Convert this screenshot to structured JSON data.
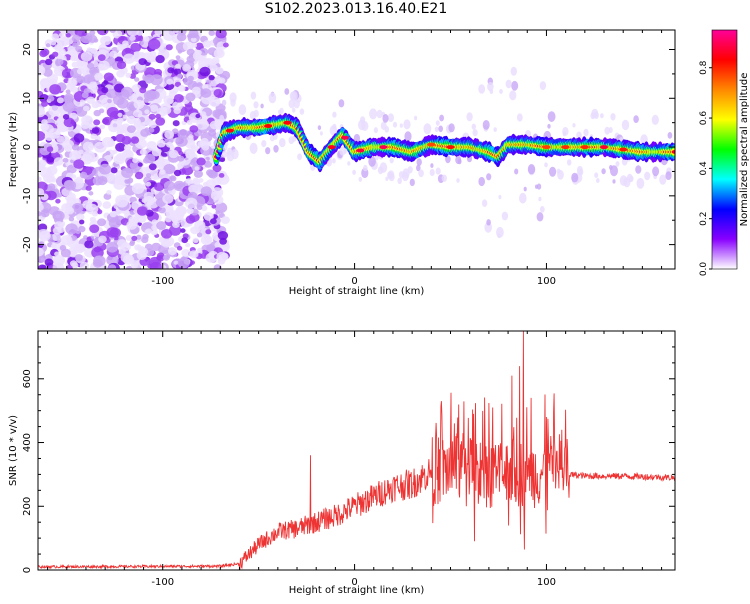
{
  "title": "S102.2023.013.16.40.E21",
  "chart_data": [
    {
      "type": "heatmap",
      "name": "spectrogram",
      "xlabel": "Height of straight line (km)",
      "ylabel": "Frequency (Hz)",
      "xlim": [
        -165,
        167
      ],
      "ylim": [
        -25,
        24
      ],
      "xticks": [
        -100,
        0,
        100
      ],
      "yticks": [
        -20,
        -10,
        0,
        10,
        20
      ],
      "colorbar": {
        "label": "Normalized spectral amplitude",
        "range": [
          0,
          0.95
        ],
        "ticks": [
          "0.0",
          "0.2",
          "0.4",
          "0.6",
          "0.8"
        ],
        "colormap": [
          "#ffffff",
          "#8800ff",
          "#0000ff",
          "#00ffff",
          "#00ff00",
          "#ffff00",
          "#ff8800",
          "#ff0000",
          "#ff0099"
        ]
      },
      "noise_region_x": [
        -165,
        -70
      ],
      "ridge": {
        "x": [
          -72,
          -68,
          -60,
          -50,
          -42,
          -35,
          -30,
          -24,
          -18,
          -12,
          -6,
          0,
          10,
          20,
          30,
          40,
          50,
          60,
          70,
          75,
          80,
          90,
          100,
          110,
          120,
          130,
          140,
          150,
          160,
          167
        ],
        "y": [
          -2,
          3,
          4,
          4,
          4.5,
          5,
          4,
          -1,
          -3,
          0,
          2.5,
          -1,
          0,
          0,
          -1,
          0.5,
          0,
          0,
          -1,
          -2,
          0.5,
          0.5,
          0,
          0,
          0,
          0,
          -0.5,
          -1,
          -1,
          -1
        ]
      }
    },
    {
      "type": "line",
      "name": "snr",
      "xlabel": "Height of straight line (km)",
      "ylabel": "SNR (10 * v/v)",
      "xlim": [
        -165,
        167
      ],
      "ylim": [
        0,
        750
      ],
      "xticks": [
        -100,
        0,
        100
      ],
      "yticks": [
        0,
        200,
        400,
        600
      ],
      "color": "#ee3333",
      "envelope": {
        "x": [
          -165,
          -70,
          -60,
          -50,
          -40,
          -30,
          -20,
          -10,
          0,
          10,
          20,
          30,
          40,
          50,
          60,
          70,
          80,
          90,
          100,
          110,
          112,
          120,
          140,
          167
        ],
        "y": [
          10,
          12,
          20,
          80,
          120,
          130,
          150,
          170,
          200,
          230,
          260,
          270,
          310,
          320,
          330,
          300,
          310,
          300,
          310,
          330,
          300,
          295,
          295,
          290
        ]
      },
      "peaks": {
        "x": [
          -23,
          52,
          62,
          72,
          82,
          86,
          88,
          92,
          100,
          108
        ],
        "y": [
          360,
          460,
          490,
          510,
          610,
          640,
          750,
          540,
          480,
          440
        ]
      }
    }
  ]
}
